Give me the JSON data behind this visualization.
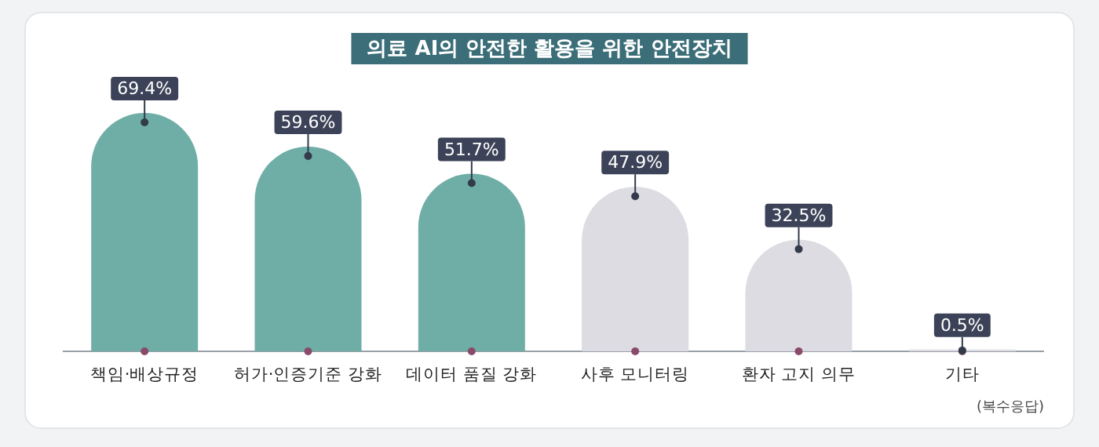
{
  "chart_data": {
    "type": "bar",
    "title": "의료 AI의 안전한 활용을 위한 안전장치",
    "categories": [
      "책임·배상규정",
      "허가·인증기준 강화",
      "데이터 품질 강화",
      "사후 모니터링",
      "환자 고지 의무",
      "기타"
    ],
    "values": [
      69.4,
      59.6,
      51.7,
      47.9,
      32.5,
      0.5
    ],
    "colors": [
      "#6faea6",
      "#6faea6",
      "#6faea6",
      "#dcdce2",
      "#dcdce2",
      "#dcdce2"
    ],
    "value_labels": [
      "69.4%",
      "59.6%",
      "51.7%",
      "47.9%",
      "32.5%",
      "0.5%"
    ],
    "annotations": [
      "(복수응답)"
    ]
  }
}
